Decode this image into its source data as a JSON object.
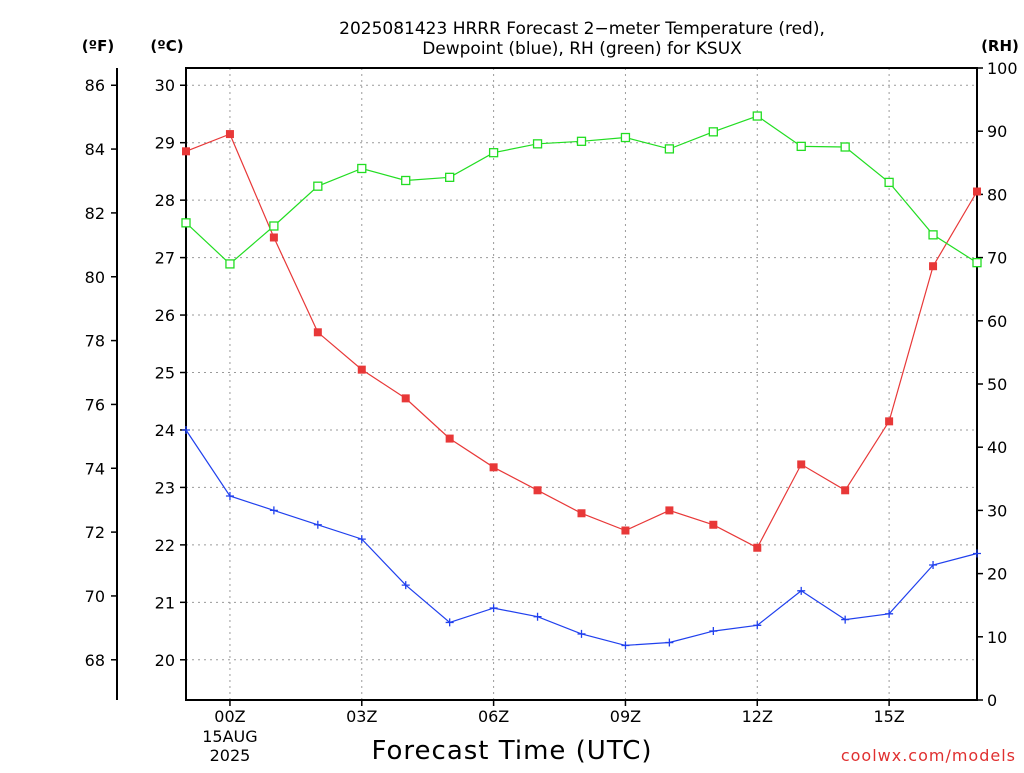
{
  "title_line1": "2025081423 HRRR Forecast 2−meter Temperature (red),",
  "title_line2": "Dewpoint (blue), RH (green) for KSUX",
  "watermark": "coolwx.com/models",
  "chart_data": {
    "type": "line",
    "title": "2025081423 HRRR Forecast 2−meter Temperature (red), Dewpoint (blue), RH (green) for KSUX",
    "xlabel": "Forecast Time (UTC)",
    "x_hours": [
      -1,
      0,
      1,
      2,
      3,
      4,
      5,
      6,
      7,
      8,
      9,
      10,
      11,
      12,
      13,
      14,
      15,
      16,
      17
    ],
    "xlim": [
      -1,
      17
    ],
    "x_ticks": [
      {
        "hour": 0,
        "label": "00Z",
        "sub1": "15AUG",
        "sub2": "2025"
      },
      {
        "hour": 3,
        "label": "03Z"
      },
      {
        "hour": 6,
        "label": "06Z"
      },
      {
        "hour": 9,
        "label": "09Z"
      },
      {
        "hour": 12,
        "label": "12Z"
      },
      {
        "hour": 15,
        "label": "15Z"
      }
    ],
    "axes": {
      "left_f": {
        "unit_label": "(ºF)",
        "range": [
          66.74,
          86.54
        ],
        "ticks": [
          68,
          70,
          72,
          74,
          76,
          78,
          80,
          82,
          84,
          86
        ]
      },
      "left_c": {
        "unit_label": "(ºC)",
        "range": [
          19.3,
          30.3
        ],
        "ticks": [
          20,
          21,
          22,
          23,
          24,
          25,
          26,
          27,
          28,
          29,
          30
        ]
      },
      "right_rh": {
        "unit_label": "(RH)",
        "range": [
          0,
          100
        ],
        "ticks": [
          0,
          10,
          20,
          30,
          40,
          50,
          60,
          70,
          80,
          90,
          100
        ]
      }
    },
    "series": [
      {
        "name": "Temperature",
        "color": "#e83838",
        "marker": "filled-square",
        "axis": "celsius",
        "values": [
          28.85,
          29.15,
          27.35,
          25.7,
          25.05,
          24.55,
          23.85,
          23.35,
          22.95,
          22.55,
          22.25,
          22.6,
          22.35,
          21.95,
          23.4,
          22.95,
          24.15,
          26.85,
          28.15
        ]
      },
      {
        "name": "Dewpoint",
        "color": "#2040ee",
        "marker": "plus",
        "axis": "celsius",
        "values": [
          24.0,
          22.85,
          22.6,
          22.35,
          22.1,
          21.3,
          20.65,
          20.9,
          20.75,
          20.45,
          20.25,
          20.3,
          20.5,
          20.6,
          21.2,
          20.7,
          20.8,
          21.65,
          21.85
        ]
      },
      {
        "name": "RH",
        "color": "#22dd22",
        "marker": "open-square",
        "axis": "rh",
        "values": [
          75.5,
          69,
          75,
          81.3,
          84.1,
          82.2,
          82.7,
          86.6,
          88,
          88.4,
          89,
          87.2,
          89.9,
          92.4,
          87.6,
          87.5,
          81.9,
          73.6,
          69.2
        ]
      }
    ],
    "grid": true,
    "legend": "none"
  }
}
